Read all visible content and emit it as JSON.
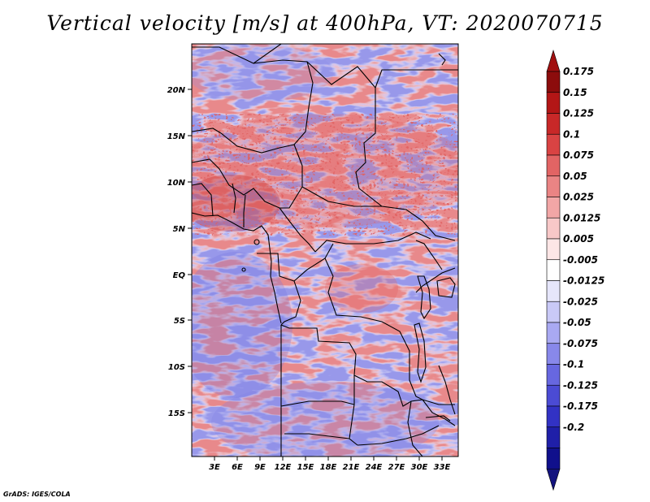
{
  "title": "Vertical velocity [m/s] at 400hPa, VT: 2020070715",
  "credit": "GrADS: IGES/COLA",
  "map": {
    "lon_range": [
      0,
      35
    ],
    "lat_range": [
      -20,
      25
    ],
    "lat_ticks": [
      {
        "value": 20,
        "label": "20N"
      },
      {
        "value": 15,
        "label": "15N"
      },
      {
        "value": 10,
        "label": "10N"
      },
      {
        "value": 5,
        "label": "5N"
      },
      {
        "value": 0,
        "label": "EQ"
      },
      {
        "value": -5,
        "label": "5S"
      },
      {
        "value": -10,
        "label": "10S"
      },
      {
        "value": -15,
        "label": "15S"
      }
    ],
    "lon_ticks": [
      {
        "value": 3,
        "label": "3E"
      },
      {
        "value": 6,
        "label": "6E"
      },
      {
        "value": 9,
        "label": "9E"
      },
      {
        "value": 12,
        "label": "12E"
      },
      {
        "value": 15,
        "label": "15E"
      },
      {
        "value": 18,
        "label": "18E"
      },
      {
        "value": 21,
        "label": "21E"
      },
      {
        "value": 24,
        "label": "24E"
      },
      {
        "value": 27,
        "label": "27E"
      },
      {
        "value": 30,
        "label": "30E"
      },
      {
        "value": 33,
        "label": "33E"
      }
    ]
  },
  "colorbar": {
    "labels": [
      "0.175",
      "0.15",
      "0.125",
      "0.1",
      "0.075",
      "0.05",
      "0.025",
      "0.0125",
      "0.005",
      "-0.005",
      "-0.0125",
      "-0.025",
      "-0.05",
      "-0.075",
      "-0.1",
      "-0.125",
      "-0.175",
      "-0.2"
    ],
    "colors": [
      "#8c0c0c",
      "#b31616",
      "#c82828",
      "#d94343",
      "#e26464",
      "#ea8484",
      "#f2a6a6",
      "#f8c8c8",
      "#fde6e6",
      "#ffffff",
      "#e6e6fb",
      "#c9c9f7",
      "#a9a9f2",
      "#8888ea",
      "#6767e0",
      "#4b4bd4",
      "#3232c4",
      "#1f1fa8",
      "#10108c"
    ],
    "top_arrow_color": "#a11010",
    "bottom_arrow_color": "#13137e"
  }
}
